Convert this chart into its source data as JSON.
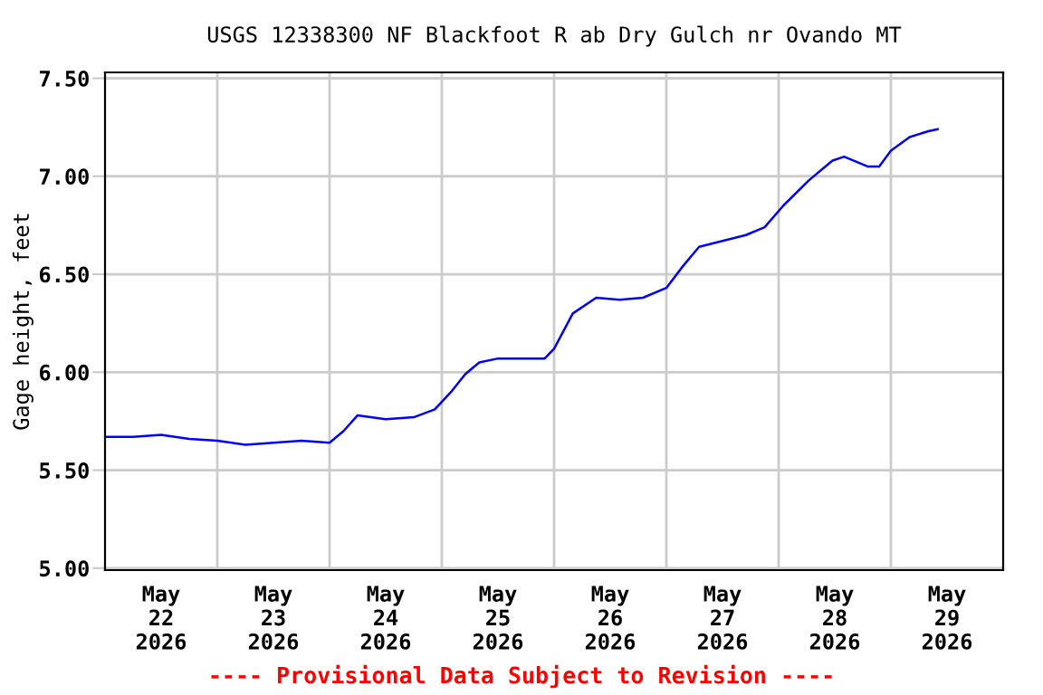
{
  "chart_data": {
    "type": "line",
    "title": "USGS 12338300 NF Blackfoot R ab Dry Gulch nr Ovando MT",
    "ylabel": "Gage height, feet",
    "annotations": [
      "---- Provisional Data Subject to Revision ----"
    ],
    "x": [
      "2026-05-22T00:00",
      "2026-05-22T06:00",
      "2026-05-22T12:00",
      "2026-05-22T18:00",
      "2026-05-23T00:00",
      "2026-05-23T06:00",
      "2026-05-23T12:00",
      "2026-05-23T18:00",
      "2026-05-24T00:00",
      "2026-05-24T03:00",
      "2026-05-24T06:00",
      "2026-05-24T12:00",
      "2026-05-24T18:00",
      "2026-05-24T22:30",
      "2026-05-25T02:00",
      "2026-05-25T05:00",
      "2026-05-25T08:00",
      "2026-05-25T12:00",
      "2026-05-25T18:00",
      "2026-05-25T22:00",
      "2026-05-26T00:00",
      "2026-05-26T04:00",
      "2026-05-26T09:00",
      "2026-05-26T14:00",
      "2026-05-26T19:00",
      "2026-05-27T00:00",
      "2026-05-27T03:30",
      "2026-05-27T07:00",
      "2026-05-27T12:00",
      "2026-05-27T17:00",
      "2026-05-27T21:00",
      "2026-05-28T01:00",
      "2026-05-28T06:30",
      "2026-05-28T11:30",
      "2026-05-28T14:00",
      "2026-05-28T19:00",
      "2026-05-28T21:30",
      "2026-05-29T00:00",
      "2026-05-29T04:00",
      "2026-05-29T08:00",
      "2026-05-29T10:00"
    ],
    "series": [
      {
        "color": "#0000ff",
        "values": [
          5.67,
          5.67,
          5.68,
          5.66,
          5.65,
          5.63,
          5.64,
          5.65,
          5.64,
          5.7,
          5.78,
          5.76,
          5.77,
          5.81,
          5.9,
          5.99,
          6.05,
          6.07,
          6.07,
          6.07,
          6.12,
          6.3,
          6.38,
          6.37,
          6.38,
          6.43,
          6.54,
          6.64,
          6.67,
          6.7,
          6.74,
          6.85,
          6.98,
          7.08,
          7.1,
          7.05,
          7.05,
          7.13,
          7.2,
          7.23,
          7.24
        ]
      }
    ],
    "xlim": [
      "2026-05-22",
      "2026-05-30"
    ],
    "xticks": [
      {
        "value": "2026-05-22T12:00",
        "label": "May\n22\n2026"
      },
      {
        "value": "2026-05-23T12:00",
        "label": "May\n23\n2026"
      },
      {
        "value": "2026-05-24T12:00",
        "label": "May\n24\n2026"
      },
      {
        "value": "2026-05-25T12:00",
        "label": "May\n25\n2026"
      },
      {
        "value": "2026-05-26T12:00",
        "label": "May\n26\n2026"
      },
      {
        "value": "2026-05-27T12:00",
        "label": "May\n27\n2026"
      },
      {
        "value": "2026-05-28T12:00",
        "label": "May\n28\n2026"
      },
      {
        "value": "2026-05-29T12:00",
        "label": "May\n29\n2026"
      },
      {
        "value": "2026-05-23",
        "label": null
      },
      {
        "value": "2026-05-24",
        "label": null
      },
      {
        "value": "2026-05-25",
        "label": null
      },
      {
        "value": "2026-05-26",
        "label": null
      },
      {
        "value": "2026-05-27",
        "label": null
      },
      {
        "value": "2026-05-28",
        "label": null
      },
      {
        "value": "2026-05-29",
        "label": null
      }
    ],
    "ylim": [
      4.99,
      7.53
    ],
    "yticks": [
      {
        "value": 5.0,
        "label": "5.00"
      },
      {
        "value": 5.5,
        "label": "5.50"
      },
      {
        "value": 6.0,
        "label": "6.00"
      },
      {
        "value": 6.5,
        "label": "6.50"
      },
      {
        "value": 7.0,
        "label": "7.00"
      },
      {
        "value": 7.5,
        "label": "7.50"
      }
    ],
    "grid": true,
    "legend": false,
    "marker": "none",
    "line_style": "solid"
  }
}
